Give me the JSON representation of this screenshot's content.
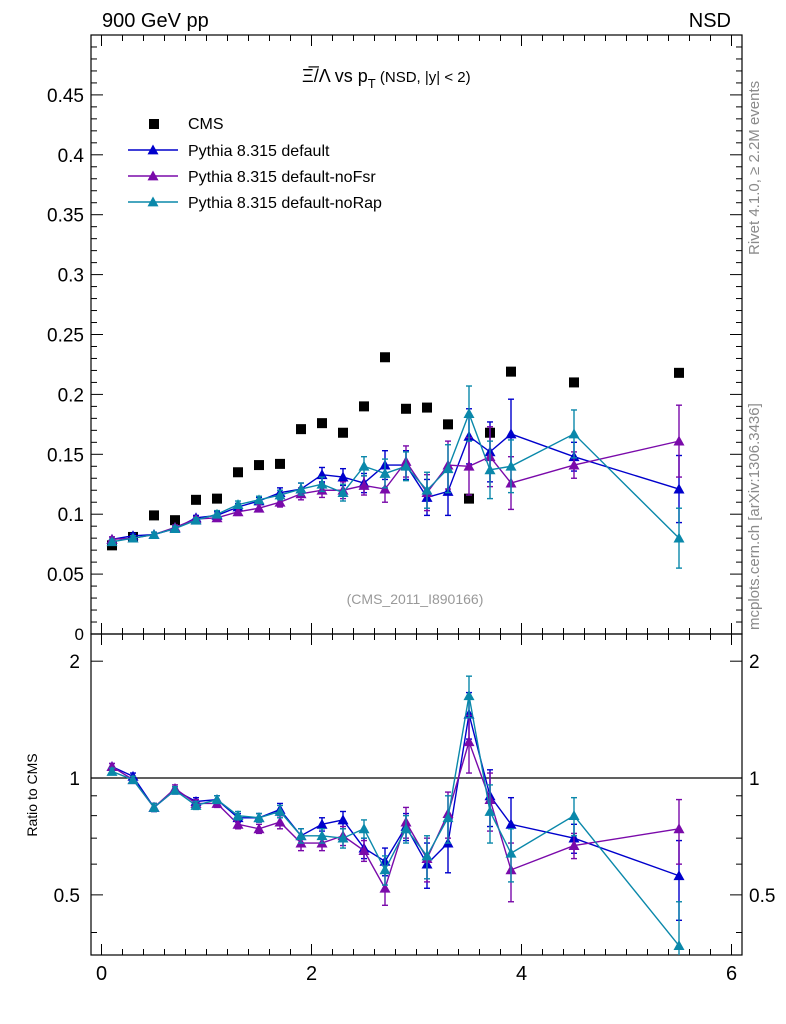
{
  "header": {
    "left": "900 GeV pp",
    "right": "NSD"
  },
  "side_labels": {
    "rivet": "Rivet 4.1.0, ≥ 2.2M events",
    "mcplots": "mcplots.cern.ch [arXiv:1306.3436]"
  },
  "title": {
    "main": "Ξ̅/Λ  vs p",
    "sub": "T",
    "suffix": " (NSD, |y| < 2)"
  },
  "watermark": "(CMS_2011_I890166)",
  "colors": {
    "cms": "#000000",
    "default": "#0000cc",
    "noFsr": "#7a0aaa",
    "noRap": "#0a88aa"
  },
  "chart_data": [
    {
      "type": "scatter",
      "name": "main",
      "xlim": [
        -0.1,
        6.1
      ],
      "ylim": [
        0,
        0.5
      ],
      "ytick_values": [
        0.05,
        0.1,
        0.15,
        0.2,
        0.25,
        0.3,
        0.35,
        0.4,
        0.45
      ],
      "ytick_labels": [
        "0.05",
        "0.1",
        "0.15",
        "0.2",
        "0.25",
        "0.3",
        "0.35",
        "0.4",
        "0.45"
      ],
      "ylabel": "",
      "legend": [
        {
          "key": "cms",
          "label": "CMS"
        },
        {
          "key": "default",
          "label": "Pythia 8.315 default"
        },
        {
          "key": "noFsr",
          "label": "Pythia 8.315 default-noFsr"
        },
        {
          "key": "noRap",
          "label": "Pythia 8.315 default-noRap"
        }
      ],
      "series": [
        {
          "key": "cms",
          "name": "CMS",
          "marker": "square",
          "x": [
            0.1,
            0.3,
            0.5,
            0.7,
            0.9,
            1.1,
            1.3,
            1.5,
            1.7,
            1.9,
            2.1,
            2.3,
            2.5,
            2.7,
            2.9,
            3.1,
            3.3,
            3.5,
            3.7,
            3.9,
            4.5,
            5.5
          ],
          "y": [
            0.074,
            0.081,
            0.099,
            0.095,
            0.112,
            0.113,
            0.135,
            0.141,
            0.142,
            0.171,
            0.176,
            0.168,
            0.19,
            0.231,
            0.188,
            0.189,
            0.175,
            0.113,
            0.168,
            0.219,
            0.21,
            0.218
          ]
        },
        {
          "key": "default",
          "name": "Pythia 8.315 default",
          "marker": "triangle",
          "x": [
            0.1,
            0.3,
            0.5,
            0.7,
            0.9,
            1.1,
            1.3,
            1.5,
            1.7,
            1.9,
            2.1,
            2.3,
            2.5,
            2.7,
            2.9,
            3.1,
            3.3,
            3.5,
            3.7,
            3.9,
            4.5,
            5.5
          ],
          "y": [
            0.079,
            0.082,
            0.083,
            0.088,
            0.097,
            0.099,
            0.106,
            0.111,
            0.118,
            0.121,
            0.133,
            0.131,
            0.126,
            0.141,
            0.141,
            0.114,
            0.119,
            0.165,
            0.152,
            0.167,
            0.148,
            0.121
          ],
          "err": [
            0.002,
            0.002,
            0.002,
            0.002,
            0.002,
            0.003,
            0.003,
            0.003,
            0.004,
            0.005,
            0.006,
            0.007,
            0.008,
            0.012,
            0.012,
            0.015,
            0.02,
            0.023,
            0.025,
            0.029,
            0.012,
            0.028
          ]
        },
        {
          "key": "noFsr",
          "name": "Pythia 8.315 default-noFsr",
          "marker": "triangle",
          "x": [
            0.1,
            0.3,
            0.5,
            0.7,
            0.9,
            1.1,
            1.3,
            1.5,
            1.7,
            1.9,
            2.1,
            2.3,
            2.5,
            2.7,
            2.9,
            3.1,
            3.3,
            3.5,
            3.7,
            3.9,
            4.5,
            5.5
          ],
          "y": [
            0.079,
            0.08,
            0.083,
            0.089,
            0.096,
            0.097,
            0.102,
            0.105,
            0.11,
            0.117,
            0.12,
            0.12,
            0.124,
            0.121,
            0.144,
            0.118,
            0.141,
            0.14,
            0.148,
            0.126,
            0.141,
            0.161
          ],
          "err": [
            0.002,
            0.002,
            0.002,
            0.002,
            0.002,
            0.003,
            0.003,
            0.003,
            0.004,
            0.005,
            0.006,
            0.007,
            0.008,
            0.011,
            0.013,
            0.015,
            0.02,
            0.024,
            0.025,
            0.022,
            0.011,
            0.03
          ]
        },
        {
          "key": "noRap",
          "name": "Pythia 8.315 default-noRap",
          "marker": "triangle",
          "x": [
            0.1,
            0.3,
            0.5,
            0.7,
            0.9,
            1.1,
            1.3,
            1.5,
            1.7,
            1.9,
            2.1,
            2.3,
            2.5,
            2.7,
            2.9,
            3.1,
            3.3,
            3.5,
            3.7,
            3.9,
            4.5,
            5.5
          ],
          "y": [
            0.077,
            0.08,
            0.083,
            0.088,
            0.095,
            0.1,
            0.108,
            0.112,
            0.116,
            0.121,
            0.125,
            0.118,
            0.14,
            0.134,
            0.14,
            0.12,
            0.138,
            0.184,
            0.137,
            0.14,
            0.167,
            0.08
          ],
          "err": [
            0.002,
            0.002,
            0.002,
            0.002,
            0.002,
            0.003,
            0.003,
            0.003,
            0.004,
            0.005,
            0.006,
            0.007,
            0.008,
            0.012,
            0.012,
            0.015,
            0.02,
            0.023,
            0.024,
            0.022,
            0.02,
            0.025
          ]
        }
      ]
    },
    {
      "type": "scatter",
      "name": "ratio",
      "xlim": [
        -0.1,
        6.1
      ],
      "ylim": [
        0.35,
        2.35
      ],
      "reference_line": 1,
      "xlabel": "",
      "ylabel": "Ratio to CMS",
      "xtick_values": [
        0,
        2,
        4,
        6
      ],
      "xtick_labels": [
        "0",
        "2",
        "4",
        "6"
      ],
      "ytick_values": [
        0.5,
        1,
        2
      ],
      "ytick_labels": [
        "0.5",
        "1",
        "2"
      ],
      "series": [
        {
          "key": "default",
          "name": "Pythia 8.315 default",
          "x": [
            0.1,
            0.3,
            0.5,
            0.7,
            0.9,
            1.1,
            1.3,
            1.5,
            1.7,
            1.9,
            2.1,
            2.3,
            2.5,
            2.7,
            2.9,
            3.1,
            3.3,
            3.5,
            3.7,
            3.9,
            4.5,
            5.5
          ],
          "y": [
            1.07,
            1.01,
            0.84,
            0.93,
            0.87,
            0.88,
            0.79,
            0.79,
            0.83,
            0.71,
            0.76,
            0.78,
            0.66,
            0.61,
            0.75,
            0.6,
            0.68,
            1.46,
            0.9,
            0.76,
            0.7,
            0.56
          ],
          "err": [
            0.02,
            0.02,
            0.02,
            0.02,
            0.02,
            0.02,
            0.02,
            0.02,
            0.03,
            0.03,
            0.03,
            0.04,
            0.04,
            0.05,
            0.06,
            0.08,
            0.11,
            0.2,
            0.15,
            0.13,
            0.06,
            0.13
          ]
        },
        {
          "key": "noFsr",
          "name": "Pythia 8.315 default-noFsr",
          "x": [
            0.1,
            0.3,
            0.5,
            0.7,
            0.9,
            1.1,
            1.3,
            1.5,
            1.7,
            1.9,
            2.1,
            2.3,
            2.5,
            2.7,
            2.9,
            3.1,
            3.3,
            3.5,
            3.7,
            3.9,
            4.5,
            5.5
          ],
          "y": [
            1.07,
            0.99,
            0.84,
            0.94,
            0.86,
            0.86,
            0.76,
            0.74,
            0.77,
            0.68,
            0.68,
            0.71,
            0.65,
            0.52,
            0.77,
            0.62,
            0.81,
            1.24,
            0.88,
            0.58,
            0.67,
            0.74
          ],
          "err": [
            0.02,
            0.02,
            0.02,
            0.02,
            0.02,
            0.02,
            0.02,
            0.02,
            0.03,
            0.03,
            0.03,
            0.04,
            0.04,
            0.05,
            0.07,
            0.08,
            0.11,
            0.21,
            0.15,
            0.1,
            0.05,
            0.14
          ]
        },
        {
          "key": "noRap",
          "name": "Pythia 8.315 default-noRap",
          "x": [
            0.1,
            0.3,
            0.5,
            0.7,
            0.9,
            1.1,
            1.3,
            1.5,
            1.7,
            1.9,
            2.1,
            2.3,
            2.5,
            2.7,
            2.9,
            3.1,
            3.3,
            3.5,
            3.7,
            3.9,
            4.5,
            5.5
          ],
          "y": [
            1.04,
            0.99,
            0.84,
            0.93,
            0.85,
            0.88,
            0.8,
            0.79,
            0.82,
            0.71,
            0.71,
            0.7,
            0.74,
            0.58,
            0.74,
            0.63,
            0.79,
            1.63,
            0.82,
            0.64,
            0.8,
            0.37
          ],
          "err": [
            0.02,
            0.02,
            0.02,
            0.02,
            0.02,
            0.02,
            0.02,
            0.02,
            0.03,
            0.03,
            0.03,
            0.04,
            0.04,
            0.05,
            0.06,
            0.08,
            0.11,
            0.2,
            0.14,
            0.1,
            0.09,
            0.11
          ]
        }
      ]
    }
  ]
}
